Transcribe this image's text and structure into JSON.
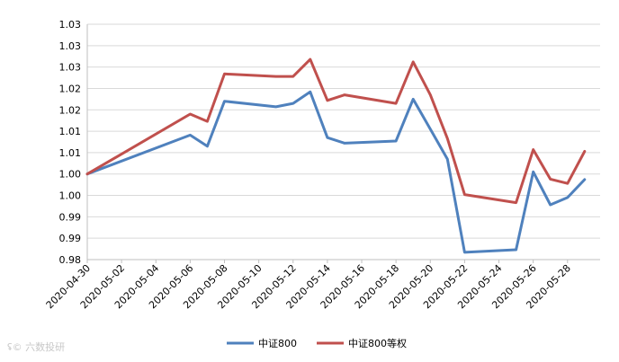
{
  "chart_data": {
    "type": "line",
    "ylim": [
      0.98,
      1.035
    ],
    "y_tick_values": [
      0.98,
      0.985,
      0.99,
      0.995,
      1.0,
      1.005,
      1.01,
      1.015,
      1.02,
      1.025,
      1.03,
      1.035
    ],
    "y_tick_labels": [
      "0.98",
      "0.99",
      "0.99",
      "1.00",
      "1.00",
      "1.01",
      "1.01",
      "1.02",
      "1.02",
      "1.03",
      "1.03",
      "1.03"
    ],
    "x_tick_labels": [
      "2020-04-30",
      "2020-05-02",
      "2020-05-04",
      "2020-05-06",
      "2020-05-08",
      "2020-05-10",
      "2020-05-12",
      "2020-05-14",
      "2020-05-16",
      "2020-05-18",
      "2020-05-20",
      "2020-05-22",
      "2020-05-24",
      "2020-05-26",
      "2020-05-28"
    ],
    "x": [
      "2020-04-30",
      "2020-05-06",
      "2020-05-07",
      "2020-05-08",
      "2020-05-11",
      "2020-05-12",
      "2020-05-13",
      "2020-05-14",
      "2020-05-15",
      "2020-05-18",
      "2020-05-19",
      "2020-05-20",
      "2020-05-21",
      "2020-05-22",
      "2020-05-25",
      "2020-05-26",
      "2020-05-27",
      "2020-05-28",
      "2020-05-29"
    ],
    "series": [
      {
        "name": "中证800",
        "color": "#4f81bd",
        "values": [
          1.0,
          1.0091,
          1.0065,
          1.017,
          1.0157,
          1.0165,
          1.0192,
          1.0085,
          1.0072,
          1.0077,
          1.0175,
          1.0105,
          1.0035,
          0.9817,
          0.9823,
          1.0005,
          0.9928,
          0.9945,
          0.9987
        ]
      },
      {
        "name": "中证800等权",
        "color": "#c0504d",
        "values": [
          1.0,
          1.014,
          1.0123,
          1.0234,
          1.0228,
          1.0228,
          1.0268,
          1.0172,
          1.0185,
          1.0165,
          1.0262,
          1.0185,
          1.0083,
          0.9952,
          0.9933,
          1.0057,
          0.9988,
          0.9978,
          1.0053
        ]
      }
    ],
    "grid": "horizontal",
    "legend_position": "bottom-center"
  },
  "watermark": {
    "text": "六数投研"
  }
}
